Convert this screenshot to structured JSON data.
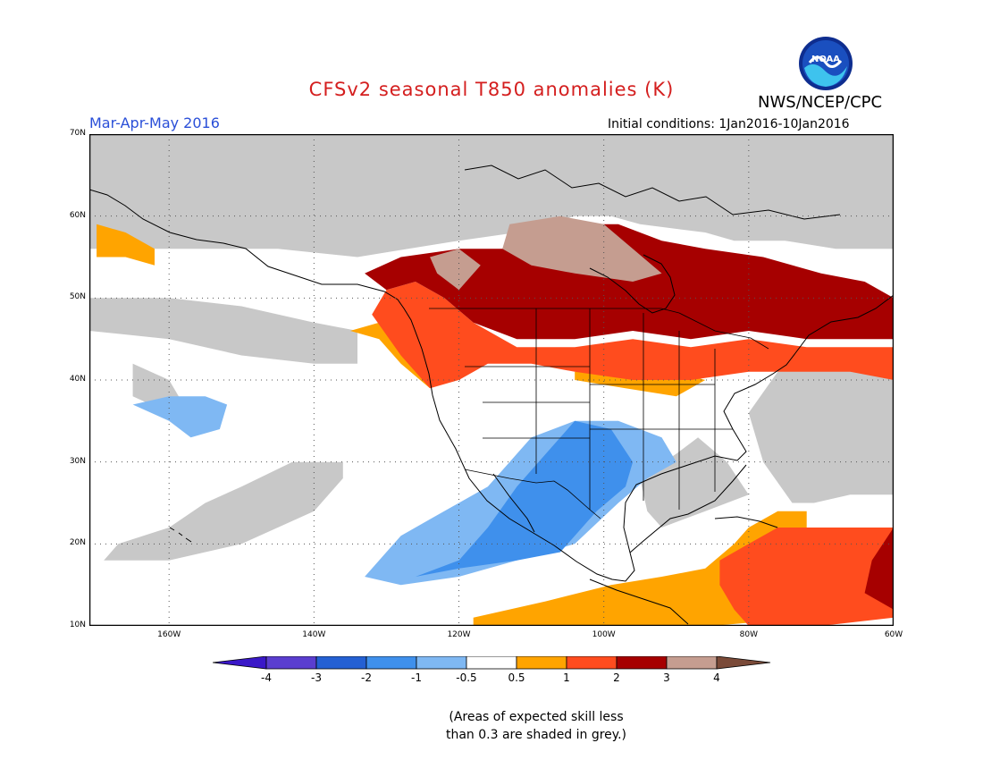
{
  "header": {
    "title": "CFSv2 seasonal T850 anomalies (K)",
    "agency": "NWS/NCEP/CPC",
    "season": "Mar-Apr-May 2016",
    "initial_conditions": "Initial conditions: 1Jan2016-10Jan2016",
    "logo_text": "NOAA"
  },
  "map": {
    "lat_labels": [
      "70N",
      "60N",
      "50N",
      "40N",
      "30N",
      "20N",
      "10N"
    ],
    "lon_labels": [
      "160W",
      "140W",
      "120W",
      "100W",
      "80W",
      "60W"
    ],
    "lat_values": [
      70,
      60,
      50,
      40,
      30,
      20,
      10
    ],
    "lon_values": [
      -160,
      -140,
      -120,
      -100,
      -80,
      -60
    ],
    "lon_range": [
      -171,
      -60
    ],
    "lat_range": [
      10,
      70
    ],
    "regions": [
      {
        "category": "skill_grey",
        "pts": [
          [
            -171,
            70
          ],
          [
            -60,
            70
          ],
          [
            -60,
            56
          ],
          [
            -68,
            56
          ],
          [
            -75,
            57
          ],
          [
            -82,
            57
          ],
          [
            -86,
            58
          ],
          [
            -95,
            59
          ],
          [
            -99,
            60
          ],
          [
            -104,
            60
          ],
          [
            -112,
            58
          ],
          [
            -120,
            57
          ],
          [
            -127,
            56
          ],
          [
            -134,
            55
          ],
          [
            -145,
            56
          ],
          [
            -160,
            56
          ],
          [
            -171,
            56
          ]
        ]
      },
      {
        "category": "skill_grey",
        "pts": [
          [
            -171,
            46
          ],
          [
            -160,
            45
          ],
          [
            -150,
            43
          ],
          [
            -140,
            42
          ],
          [
            -134,
            42
          ],
          [
            -134,
            46
          ],
          [
            -140,
            47
          ],
          [
            -150,
            49
          ],
          [
            -160,
            50
          ],
          [
            -171,
            50
          ]
        ]
      },
      {
        "category": "skill_grey",
        "pts": [
          [
            -76,
            41
          ],
          [
            -68,
            42
          ],
          [
            -60,
            44
          ],
          [
            -60,
            26
          ],
          [
            -66,
            26
          ],
          [
            -71,
            25
          ],
          [
            -74,
            25
          ],
          [
            -78,
            30
          ],
          [
            -80,
            36
          ]
        ]
      },
      {
        "category": "skill_grey",
        "pts": [
          [
            -87,
            33
          ],
          [
            -83,
            30
          ],
          [
            -80,
            26
          ],
          [
            -86,
            24
          ],
          [
            -92,
            22
          ],
          [
            -94,
            24
          ],
          [
            -95,
            28
          ],
          [
            -90,
            31
          ]
        ]
      },
      {
        "category": "skill_grey",
        "pts": [
          [
            -169,
            18
          ],
          [
            -160,
            18
          ],
          [
            -150,
            20
          ],
          [
            -140,
            24
          ],
          [
            -136,
            28
          ],
          [
            -136,
            30
          ],
          [
            -143,
            30
          ],
          [
            -150,
            27
          ],
          [
            -155,
            25
          ],
          [
            -160,
            22
          ],
          [
            -167,
            20
          ]
        ]
      },
      {
        "category": "skill_grey",
        "pts": [
          [
            -165,
            42
          ],
          [
            -160,
            40
          ],
          [
            -158,
            37
          ],
          [
            -160,
            36
          ],
          [
            -165,
            38
          ]
        ]
      },
      {
        "category": "anom_pos_0_5_1",
        "pts": [
          [
            -170,
            59
          ],
          [
            -166,
            58
          ],
          [
            -162,
            56
          ],
          [
            -162,
            54
          ],
          [
            -166,
            55
          ],
          [
            -170,
            55
          ]
        ]
      },
      {
        "category": "anom_pos_0_5_1",
        "pts": [
          [
            -135,
            46
          ],
          [
            -131,
            45
          ],
          [
            -128,
            42
          ],
          [
            -124,
            39
          ],
          [
            -124,
            42
          ],
          [
            -126,
            44
          ],
          [
            -128,
            46
          ],
          [
            -131,
            47
          ]
        ]
      },
      {
        "category": "anom_pos_0_5_1",
        "pts": [
          [
            -104,
            40
          ],
          [
            -97,
            39
          ],
          [
            -90,
            38
          ],
          [
            -86,
            40
          ],
          [
            -90,
            41
          ],
          [
            -98,
            41
          ],
          [
            -104,
            41
          ]
        ]
      },
      {
        "category": "anom_pos_0_5_1",
        "pts": [
          [
            -118,
            11
          ],
          [
            -108,
            13
          ],
          [
            -99,
            15
          ],
          [
            -92,
            16
          ],
          [
            -86,
            17
          ],
          [
            -82,
            20
          ],
          [
            -80,
            22
          ],
          [
            -76,
            24
          ],
          [
            -72,
            24
          ],
          [
            -72,
            11
          ],
          [
            -85,
            10
          ],
          [
            -118,
            10
          ]
        ]
      },
      {
        "category": "anom_pos_1_2",
        "pts": [
          [
            -130,
            51
          ],
          [
            -126,
            52
          ],
          [
            -122,
            50
          ],
          [
            -118,
            47
          ],
          [
            -112,
            44
          ],
          [
            -104,
            44
          ],
          [
            -96,
            45
          ],
          [
            -88,
            44
          ],
          [
            -80,
            45
          ],
          [
            -72,
            44
          ],
          [
            -66,
            44
          ],
          [
            -60,
            44
          ],
          [
            -60,
            40
          ],
          [
            -66,
            41
          ],
          [
            -72,
            41
          ],
          [
            -80,
            41
          ],
          [
            -88,
            40
          ],
          [
            -96,
            40
          ],
          [
            -104,
            41
          ],
          [
            -110,
            42
          ],
          [
            -116,
            42
          ],
          [
            -120,
            40
          ],
          [
            -124,
            39
          ],
          [
            -128,
            43
          ],
          [
            -132,
            48
          ]
        ]
      },
      {
        "category": "anom_pos_1_2",
        "pts": [
          [
            -80,
            20
          ],
          [
            -76,
            22
          ],
          [
            -72,
            22
          ],
          [
            -66,
            22
          ],
          [
            -60,
            22
          ],
          [
            -60,
            11
          ],
          [
            -70,
            10
          ],
          [
            -80,
            10
          ],
          [
            -82,
            12
          ],
          [
            -84,
            15
          ],
          [
            -84,
            18
          ]
        ]
      },
      {
        "category": "anom_pos_2_3",
        "pts": [
          [
            -133,
            53
          ],
          [
            -128,
            55
          ],
          [
            -120,
            56
          ],
          [
            -112,
            56
          ],
          [
            -104,
            59
          ],
          [
            -98,
            59
          ],
          [
            -92,
            57
          ],
          [
            -86,
            56
          ],
          [
            -78,
            55
          ],
          [
            -70,
            53
          ],
          [
            -64,
            52
          ],
          [
            -60,
            50
          ],
          [
            -60,
            45
          ],
          [
            -66,
            45
          ],
          [
            -72,
            45
          ],
          [
            -80,
            46
          ],
          [
            -88,
            45
          ],
          [
            -96,
            46
          ],
          [
            -104,
            45
          ],
          [
            -112,
            45
          ],
          [
            -118,
            47
          ],
          [
            -122,
            50
          ],
          [
            -126,
            52
          ],
          [
            -130,
            51
          ]
        ]
      },
      {
        "category": "anom_pos_2_3",
        "pts": [
          [
            -60,
            22
          ],
          [
            -63,
            18
          ],
          [
            -64,
            14
          ],
          [
            -60,
            12
          ]
        ]
      },
      {
        "category": "anom_pos_3_4",
        "pts": [
          [
            -113,
            59
          ],
          [
            -106,
            60
          ],
          [
            -100,
            59
          ],
          [
            -96,
            56
          ],
          [
            -92,
            53
          ],
          [
            -96,
            52
          ],
          [
            -104,
            53
          ],
          [
            -110,
            54
          ],
          [
            -114,
            56
          ]
        ]
      },
      {
        "category": "anom_pos_3_4",
        "pts": [
          [
            -124,
            55
          ],
          [
            -120,
            56
          ],
          [
            -117,
            54
          ],
          [
            -120,
            51
          ],
          [
            -123,
            53
          ]
        ]
      },
      {
        "category": "anom_neg_0_5_1",
        "pts": [
          [
            -165,
            37
          ],
          [
            -160,
            38
          ],
          [
            -155,
            38
          ],
          [
            -152,
            37
          ],
          [
            -153,
            34
          ],
          [
            -157,
            33
          ],
          [
            -160,
            35
          ]
        ]
      },
      {
        "category": "anom_neg_0_5_1",
        "pts": [
          [
            -130,
            19
          ],
          [
            -128,
            21
          ],
          [
            -124,
            23
          ],
          [
            -120,
            25
          ],
          [
            -116,
            27
          ],
          [
            -113,
            30
          ],
          [
            -110,
            33
          ],
          [
            -104,
            35
          ],
          [
            -98,
            35
          ],
          [
            -92,
            33
          ],
          [
            -90,
            30
          ],
          [
            -94,
            28
          ],
          [
            -98,
            25
          ],
          [
            -104,
            20
          ],
          [
            -112,
            18
          ],
          [
            -120,
            16
          ],
          [
            -128,
            15
          ],
          [
            -133,
            16
          ]
        ]
      },
      {
        "category": "anom_neg_1_2",
        "pts": [
          [
            -126,
            16
          ],
          [
            -120,
            18
          ],
          [
            -116,
            22
          ],
          [
            -112,
            27
          ],
          [
            -108,
            31
          ],
          [
            -104,
            35
          ],
          [
            -99,
            34
          ],
          [
            -96,
            30
          ],
          [
            -97,
            27
          ],
          [
            -101,
            24
          ],
          [
            -106,
            19
          ],
          [
            -112,
            18
          ],
          [
            -120,
            17
          ]
        ]
      }
    ],
    "states_lines": [
      [
        -124,
        42
      ],
      [
        -111,
        42
      ]
    ],
    "markers": [
      {
        "lon": -117,
        "lat": 48
      },
      {
        "lon": -111,
        "lat": 48
      }
    ]
  },
  "colorbar": {
    "labels": [
      "-4",
      "-3",
      "-2",
      "-1",
      "-0.5",
      "0.5",
      "1",
      "2",
      "3",
      "4"
    ],
    "colors": [
      "#3a18c8",
      "#5a3ecf",
      "#2460d3",
      "#3f90ec",
      "#7fb8f3",
      "#ffffff",
      "#ffa400",
      "#ff4c1e",
      "#a60000",
      "#c59d90",
      "#7a4a38"
    ]
  },
  "palette": {
    "skill_grey": "#c8c8c8",
    "anom_pos_0_5_1": "#ffa400",
    "anom_pos_1_2": "#ff4c1e",
    "anom_pos_2_3": "#a60000",
    "anom_pos_3_4": "#c59d90",
    "anom_neg_0_5_1": "#7fb8f3",
    "anom_neg_1_2": "#3f90ec"
  },
  "footnote": {
    "line1": "(Areas of expected skill less",
    "line2": "than 0.3 are shaded in grey.)"
  }
}
